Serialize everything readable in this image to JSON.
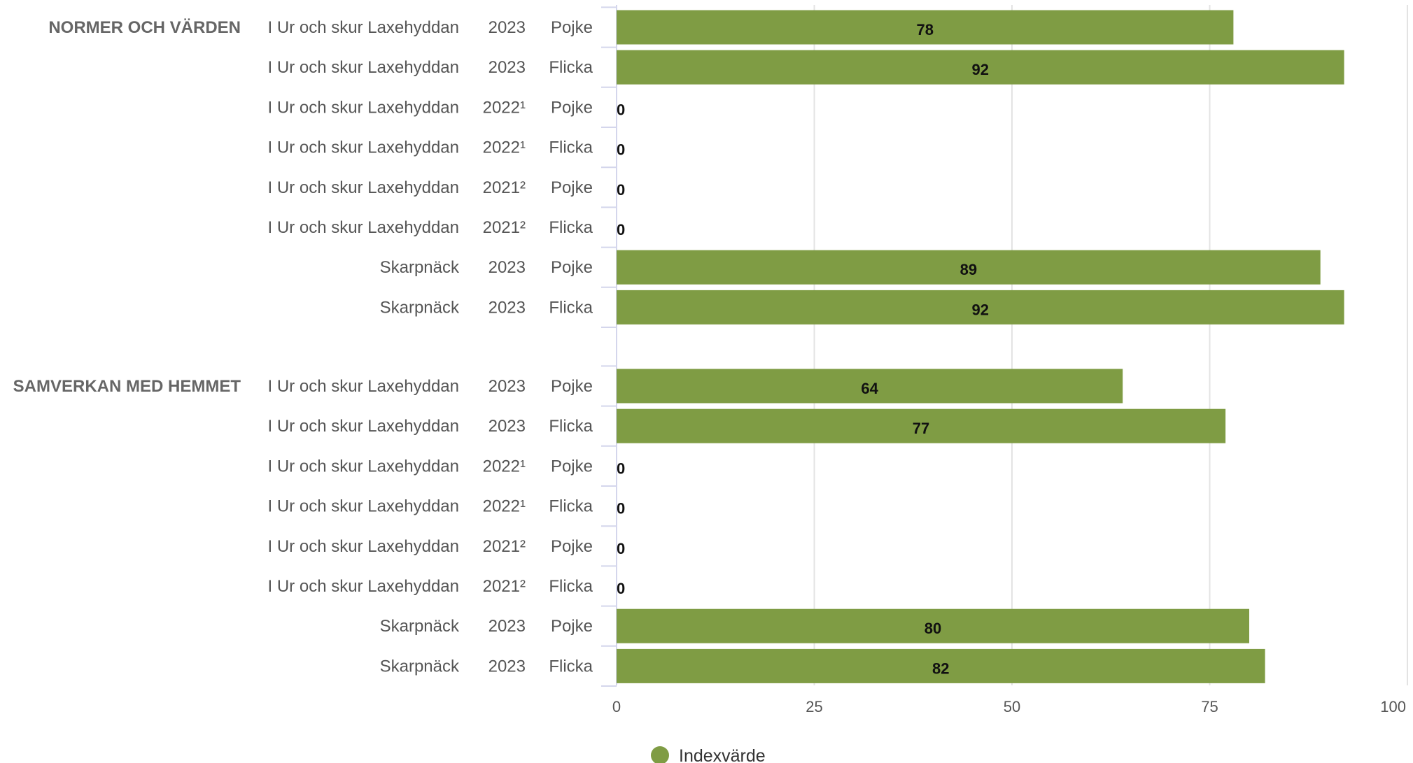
{
  "chart_data": {
    "type": "bar",
    "orientation": "horizontal",
    "grid": true,
    "legend_position": "bottom-center",
    "xlim": [
      0,
      100
    ],
    "xticks": [
      0,
      25,
      50,
      75,
      100
    ],
    "series": [
      {
        "name": "Indexvärde",
        "color": "#7f9c44"
      }
    ],
    "groups": [
      {
        "label": "NORMER OCH VÄRDEN",
        "rows": [
          {
            "unit": "I Ur och skur Laxehyddan",
            "year": "2023",
            "gender": "Pojke",
            "value": 78
          },
          {
            "unit": "I Ur och skur Laxehyddan",
            "year": "2023",
            "gender": "Flicka",
            "value": 92
          },
          {
            "unit": "I Ur och skur Laxehyddan",
            "year": "2022¹",
            "gender": "Pojke",
            "value": 0
          },
          {
            "unit": "I Ur och skur Laxehyddan",
            "year": "2022¹",
            "gender": "Flicka",
            "value": 0
          },
          {
            "unit": "I Ur och skur Laxehyddan",
            "year": "2021²",
            "gender": "Pojke",
            "value": 0
          },
          {
            "unit": "I Ur och skur Laxehyddan",
            "year": "2021²",
            "gender": "Flicka",
            "value": 0
          },
          {
            "unit": "Skarpnäck",
            "year": "2023",
            "gender": "Pojke",
            "value": 89
          },
          {
            "unit": "Skarpnäck",
            "year": "2023",
            "gender": "Flicka",
            "value": 92
          }
        ]
      },
      {
        "label": "SAMVERKAN MED HEMMET",
        "rows": [
          {
            "unit": "I Ur och skur Laxehyddan",
            "year": "2023",
            "gender": "Pojke",
            "value": 64
          },
          {
            "unit": "I Ur och skur Laxehyddan",
            "year": "2023",
            "gender": "Flicka",
            "value": 77
          },
          {
            "unit": "I Ur och skur Laxehyddan",
            "year": "2022¹",
            "gender": "Pojke",
            "value": 0
          },
          {
            "unit": "I Ur och skur Laxehyddan",
            "year": "2022¹",
            "gender": "Flicka",
            "value": 0
          },
          {
            "unit": "I Ur och skur Laxehyddan",
            "year": "2021²",
            "gender": "Pojke",
            "value": 0
          },
          {
            "unit": "I Ur och skur Laxehyddan",
            "year": "2021²",
            "gender": "Flicka",
            "value": 0
          },
          {
            "unit": "Skarpnäck",
            "year": "2023",
            "gender": "Pojke",
            "value": 80
          },
          {
            "unit": "Skarpnäck",
            "year": "2023",
            "gender": "Flicka",
            "value": 82
          }
        ]
      }
    ]
  }
}
